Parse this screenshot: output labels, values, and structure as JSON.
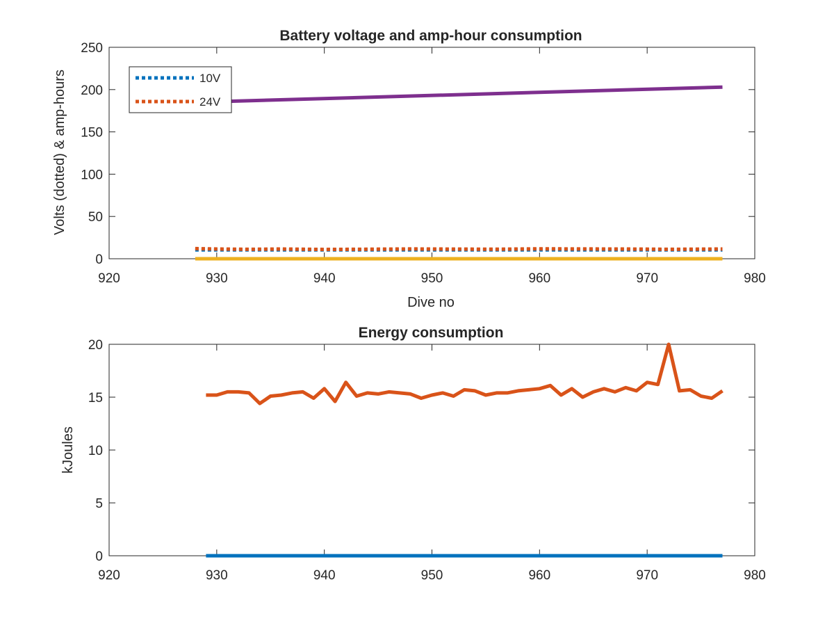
{
  "chart_data": [
    {
      "type": "line",
      "title": "Battery voltage and amp-hour consumption",
      "xlabel": "Dive no",
      "ylabel": "Volts (dotted) & amp-hours",
      "xlim": [
        920,
        980
      ],
      "ylim": [
        0,
        250
      ],
      "xticks": [
        "920",
        "930",
        "940",
        "950",
        "960",
        "970",
        "980"
      ],
      "yticks": [
        "0",
        "50",
        "100",
        "150",
        "200",
        "250"
      ],
      "grid": false,
      "legend_position": "top-left",
      "series": [
        {
          "name": "10V",
          "color": "#0072BD",
          "style": "dotted",
          "x": [
            928,
            977
          ],
          "y": [
            10.5,
            10.5
          ]
        },
        {
          "name": "24V",
          "color": "#D95319",
          "style": "dotted",
          "x": [
            928,
            930,
            933,
            936,
            940,
            944,
            948,
            952,
            956,
            960,
            964,
            968,
            972,
            977
          ],
          "y": [
            12,
            11.5,
            11.2,
            11.5,
            11,
            11.3,
            11.6,
            11.4,
            11.3,
            11.8,
            11.6,
            11.5,
            11.2,
            11.5
          ]
        },
        {
          "color": "#7E2F8E",
          "style": "solid",
          "x": [
            928,
            977
          ],
          "y": [
            185,
            203
          ]
        },
        {
          "color": "#EDB120",
          "style": "solid",
          "x": [
            928,
            977
          ],
          "y": [
            0,
            0
          ]
        }
      ]
    },
    {
      "type": "line",
      "title": "Energy consumption",
      "xlabel": "",
      "ylabel": "kJoules",
      "xlim": [
        920,
        980
      ],
      "ylim": [
        0,
        20
      ],
      "xticks": [
        "920",
        "930",
        "940",
        "950",
        "960",
        "970",
        "980"
      ],
      "yticks": [
        "0",
        "5",
        "10",
        "15",
        "20"
      ],
      "grid": false,
      "series": [
        {
          "color": "#D95319",
          "style": "solid",
          "x": [
            929,
            930,
            931,
            932,
            933,
            934,
            935,
            936,
            937,
            938,
            939,
            940,
            941,
            942,
            943,
            944,
            945,
            946,
            947,
            948,
            949,
            950,
            951,
            952,
            953,
            954,
            955,
            956,
            957,
            958,
            959,
            960,
            961,
            962,
            963,
            964,
            965,
            966,
            967,
            968,
            969,
            970,
            971,
            972,
            973,
            974,
            975,
            976,
            977
          ],
          "y": [
            15.2,
            15.2,
            15.5,
            15.5,
            15.4,
            14.4,
            15.1,
            15.2,
            15.4,
            15.5,
            14.9,
            15.8,
            14.6,
            16.4,
            15.1,
            15.4,
            15.3,
            15.5,
            15.4,
            15.3,
            14.9,
            15.2,
            15.4,
            15.1,
            15.7,
            15.6,
            15.2,
            15.4,
            15.4,
            15.6,
            15.7,
            15.8,
            16.1,
            15.2,
            15.8,
            15.0,
            15.5,
            15.8,
            15.5,
            15.9,
            15.6,
            16.4,
            16.2,
            20.0,
            15.6,
            15.7,
            15.1,
            14.9,
            15.6
          ]
        },
        {
          "color": "#0072BD",
          "style": "solid",
          "x": [
            929,
            977
          ],
          "y": [
            0,
            0
          ]
        }
      ]
    }
  ]
}
